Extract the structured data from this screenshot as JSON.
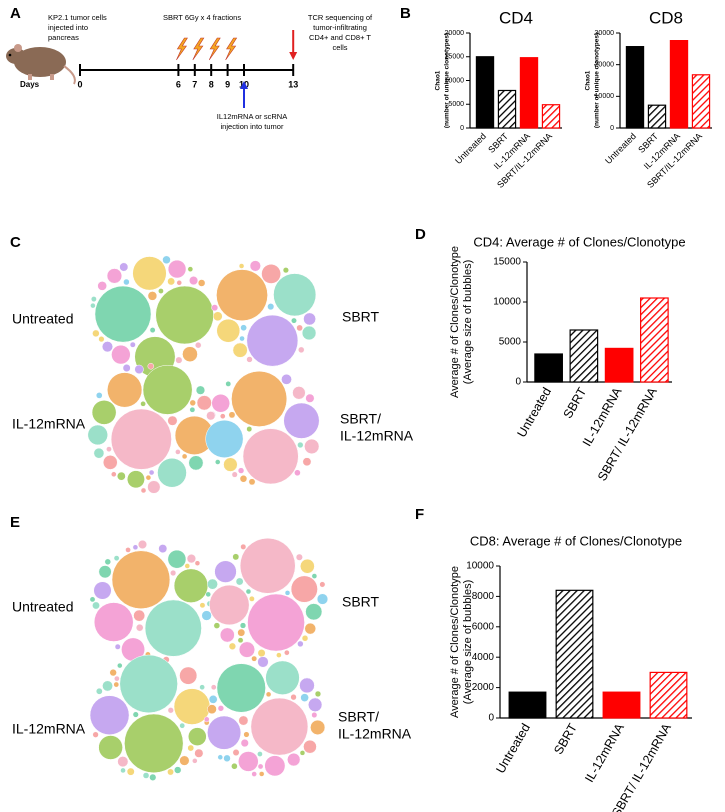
{
  "panel_labels": [
    "A",
    "B",
    "C",
    "D",
    "E",
    "F"
  ],
  "timeline": {
    "start_text": [
      "KP2.1 tumor cells",
      "injected into",
      "pancreas"
    ],
    "sbrt_text": "SBRT 6Gy x 4 fractions",
    "tcr_text": [
      "TCR sequencing of",
      "tumor-infiltrating",
      "CD4+ and CD8+ T",
      "cells"
    ],
    "injection_text": [
      "IL12mRNA or scRNA",
      "injection into tumor"
    ],
    "days_label": "Days",
    "days": [
      0,
      6,
      7,
      8,
      9,
      10,
      13
    ]
  },
  "bubble_panels": [
    {
      "labels": [
        [
          "Untreated"
        ],
        [
          "SBRT"
        ],
        [
          "IL-12mRNA"
        ],
        [
          "SBRT/",
          "IL-12mRNA"
        ]
      ]
    },
    {
      "labels": [
        [
          "Untreated"
        ],
        [
          "SBRT"
        ],
        [
          "IL-12mRNA"
        ],
        [
          "SBRT/",
          "IL-12mRNA"
        ]
      ]
    }
  ],
  "chart_data": [
    {
      "type": "bar",
      "title": "CD4",
      "ylabel": [
        "Chao1",
        "(number of unique clonotypes)"
      ],
      "categories": [
        "Untreated",
        "SBRT",
        "IL-12mRNA",
        "SBRT/IL-12mRNA"
      ],
      "values": [
        15000,
        7900,
        14800,
        4900
      ],
      "colors": [
        "#000000",
        "#000000",
        "#ff0000",
        "#ff0000"
      ],
      "hatched": [
        false,
        true,
        false,
        true
      ],
      "ylim": [
        0,
        20000
      ],
      "yticks": [
        0,
        5000,
        10000,
        15000,
        20000
      ]
    },
    {
      "type": "bar",
      "title": "CD8",
      "ylabel": [
        "Chao1",
        "(number of unique clonotypes)"
      ],
      "categories": [
        "Untreated",
        "SBRT",
        "IL-12mRNA",
        "SBRT/IL-12mRNA"
      ],
      "values": [
        25700,
        7200,
        27600,
        16800
      ],
      "colors": [
        "#000000",
        "#000000",
        "#ff0000",
        "#ff0000"
      ],
      "hatched": [
        false,
        true,
        false,
        true
      ],
      "ylim": [
        0,
        30000
      ],
      "yticks": [
        0,
        10000,
        20000,
        30000
      ]
    },
    {
      "type": "bar",
      "title": "CD4: Average # of Clones/Clonotype",
      "ylabel": [
        "Average # of Clones/Clonotype",
        "(Average size of bubbles)"
      ],
      "categories": [
        "Untreated",
        "SBRT",
        "IL-12mRNA",
        "SBRT/ IL-12mRNA"
      ],
      "values": [
        3500,
        6500,
        4200,
        10500
      ],
      "colors": [
        "#000000",
        "#000000",
        "#ff0000",
        "#ff0000"
      ],
      "hatched": [
        false,
        true,
        false,
        true
      ],
      "ylim": [
        0,
        15000
      ],
      "yticks": [
        0,
        5000,
        10000,
        15000
      ]
    },
    {
      "type": "bar",
      "title": "CD8: Average # of Clones/Clonotype",
      "ylabel": [
        "Average # of Clones/Clonotype",
        "(Average size of bubbles)"
      ],
      "categories": [
        "Untreated",
        "SBRT",
        "IL-12mRNA",
        "SBRT/ IL-12mRNA"
      ],
      "values": [
        1700,
        8400,
        1700,
        3000
      ],
      "colors": [
        "#000000",
        "#000000",
        "#ff0000",
        "#ff0000"
      ],
      "hatched": [
        false,
        true,
        false,
        true
      ],
      "ylim": [
        0,
        10000
      ],
      "yticks": [
        0,
        2000,
        4000,
        6000,
        8000,
        10000
      ]
    }
  ]
}
